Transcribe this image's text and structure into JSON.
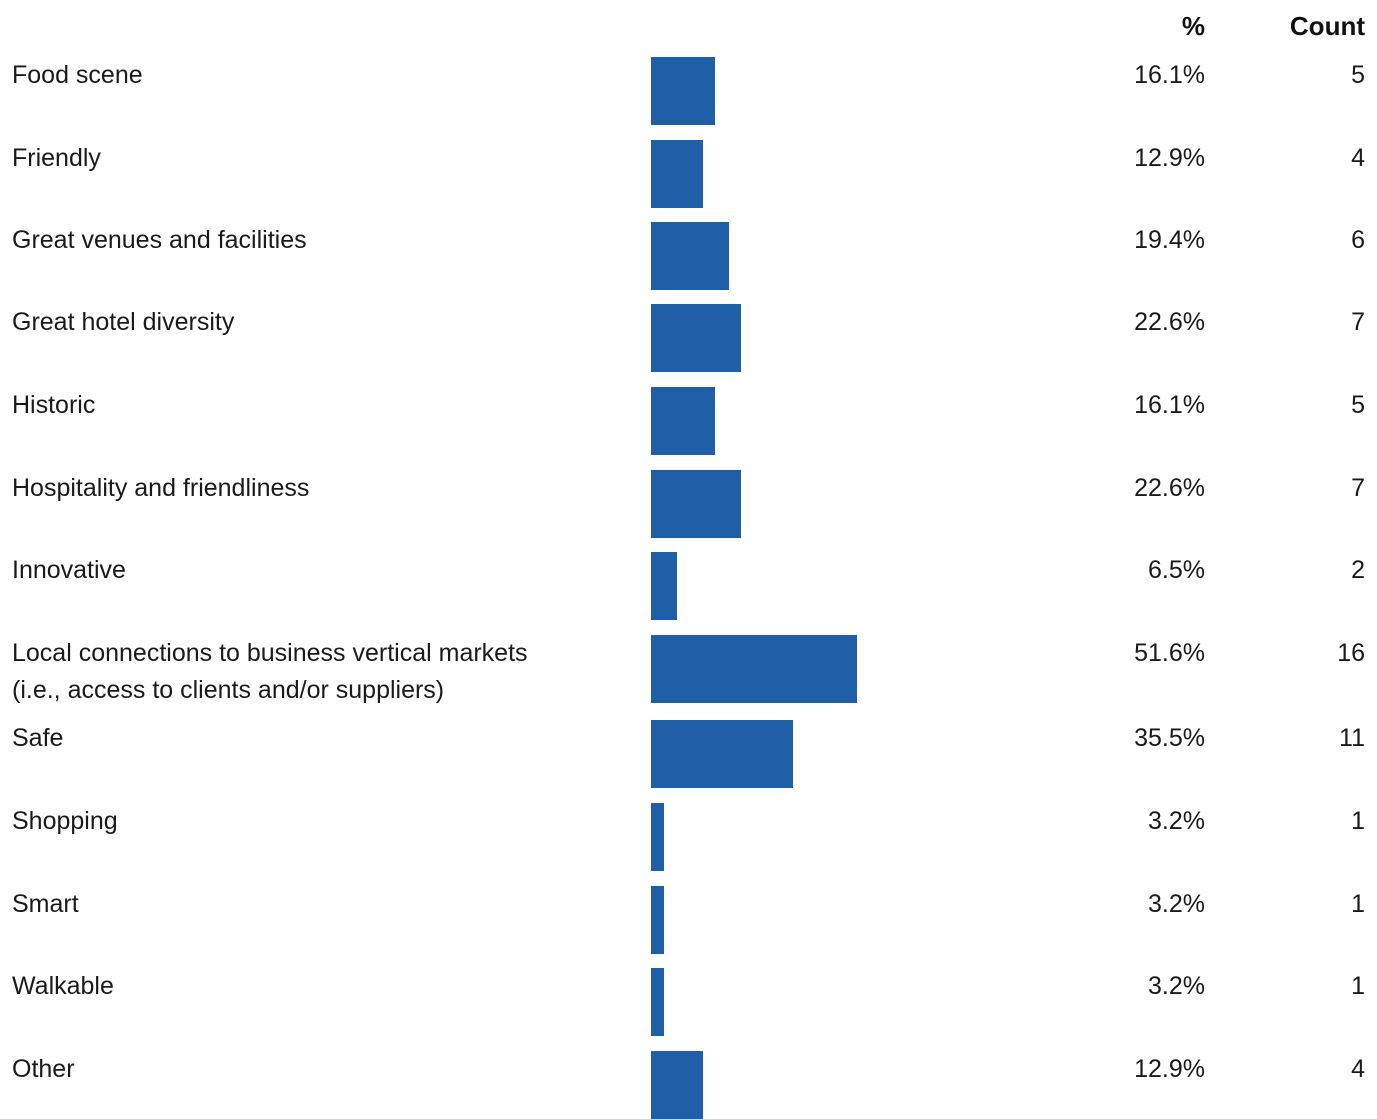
{
  "chart_data": {
    "type": "bar",
    "orientation": "horizontal",
    "columns": {
      "percent_header": "%",
      "count_header": "Count"
    },
    "bar_color": "#1f5fa8",
    "categories": [
      "Food scene",
      "Friendly",
      "Great venues and facilities",
      "Great hotel diversity",
      "Historic",
      "Hospitality and friendliness",
      "Innovative",
      "Local connections to business vertical markets\n(i.e., access to clients and/or suppliers)",
      "Safe",
      "Shopping",
      "Smart",
      "Walkable",
      "Other"
    ],
    "values": [
      16.1,
      12.9,
      19.4,
      22.6,
      16.1,
      22.6,
      6.5,
      51.6,
      35.5,
      3.2,
      3.2,
      3.2,
      12.9
    ],
    "percent_labels": [
      "16.1%",
      "12.9%",
      "19.4%",
      "22.6%",
      "16.1%",
      "22.6%",
      "6.5%",
      "51.6%",
      "35.5%",
      "3.2%",
      "3.2%",
      "3.2%",
      "12.9%"
    ],
    "counts": [
      "5",
      "4",
      "6",
      "7",
      "5",
      "7",
      "2",
      "16",
      "11",
      "1",
      "1",
      "1",
      "4"
    ]
  }
}
